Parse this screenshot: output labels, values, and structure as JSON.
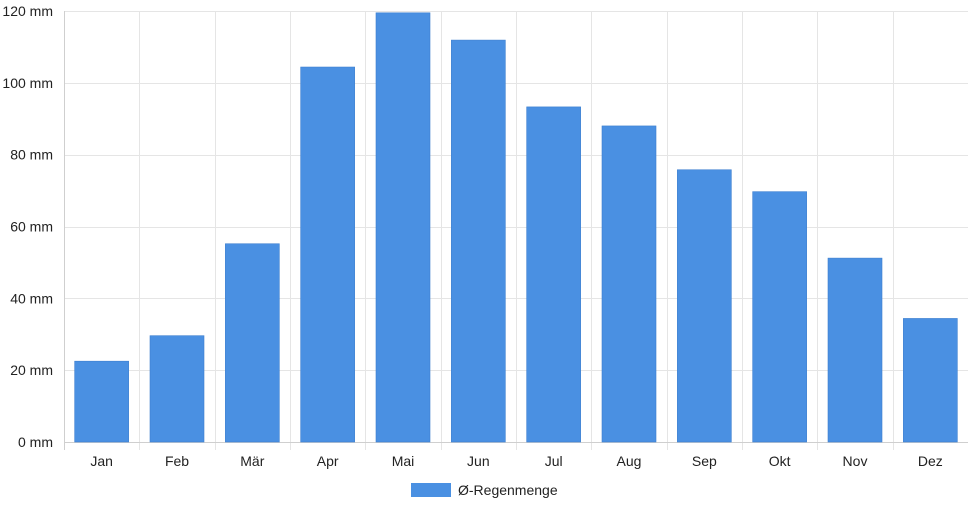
{
  "chart_data": {
    "type": "bar",
    "categories": [
      "Jan",
      "Feb",
      "Mär",
      "Apr",
      "Mai",
      "Jun",
      "Jul",
      "Aug",
      "Sep",
      "Okt",
      "Nov",
      "Dez"
    ],
    "series": [
      {
        "name": "Ø-Regenmenge",
        "color": "#4a90e2",
        "values": [
          22.5,
          29.6,
          55.2,
          104.4,
          119.5,
          111.9,
          93.3,
          88.0,
          75.8,
          69.7,
          51.2,
          34.4
        ]
      }
    ],
    "ylim": [
      0,
      120
    ],
    "yticks": [
      0,
      20,
      40,
      60,
      80,
      100,
      120
    ],
    "ytick_labels": [
      "0 mm",
      "20 mm",
      "40 mm",
      "60 mm",
      "80 mm",
      "100 mm",
      "120 mm"
    ],
    "grid": true,
    "legend_position": "bottom-center",
    "legend_label": "Ø-Regenmenge"
  }
}
